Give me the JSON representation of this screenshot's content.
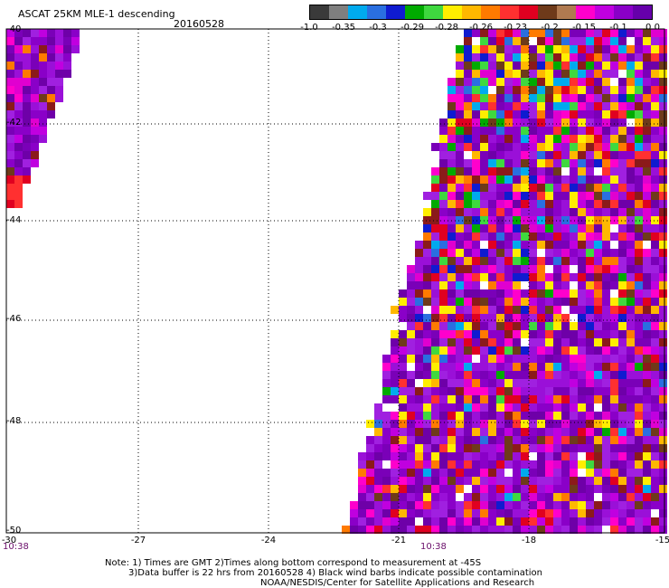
{
  "header": {
    "product": "ASCAT 25KM MLE-1 descending",
    "date": "20160528"
  },
  "colorbar": {
    "colors": [
      "#3a3a3a",
      "#7f7f7f",
      "#00aaee",
      "#2a6fe0",
      "#0f1bd0",
      "#00aa00",
      "#3fd83f",
      "#ffee00",
      "#ffb800",
      "#ff7a00",
      "#ff3030",
      "#e00020",
      "#6e3a1a",
      "#b07a50",
      "#ff00cc",
      "#c000e0",
      "#8a00c8",
      "#6600aa"
    ],
    "labels": [
      "-1.0",
      "-0.35",
      "-0.3",
      "-0.29",
      "-0.28",
      "-0.26",
      "-0.23",
      "-0.2",
      "-0.15",
      "-0.1",
      "0.0"
    ]
  },
  "map": {
    "x_ticks": [
      "-30",
      "-27",
      "-24",
      "-21",
      "-18",
      "-15"
    ],
    "y_ticks": [
      "-40",
      "-42",
      "-44",
      "-46",
      "-48",
      "-50"
    ],
    "time_labels": [
      "10:38",
      "10:38"
    ],
    "palette": {
      "purple": [
        "#8a00c8",
        "#9a10d8",
        "#7a00b8",
        "#a020e0",
        "#6e00a8"
      ],
      "magenta": [
        "#ff00cc",
        "#e000d0",
        "#c000e0"
      ],
      "warm": [
        "#ff3030",
        "#e00020",
        "#ff7a00",
        "#ffb800",
        "#ffee00",
        "#6e3a1a",
        "#8b1a1a"
      ],
      "cool": [
        "#0f1bd0",
        "#2a6fe0",
        "#00aaee",
        "#00aa00",
        "#3fd83f"
      ]
    }
  },
  "footer": {
    "note_line1": "Note: 1) Times are GMT 2)Times along bottom correspond to measurement at -45S",
    "note_line2": "3)Data buffer is 22 hrs from 20160528 4) Black wind barbs indicate possible contamination",
    "note_line3": "NOAA/NESDIS/Center for Satellite Applications and Research"
  }
}
